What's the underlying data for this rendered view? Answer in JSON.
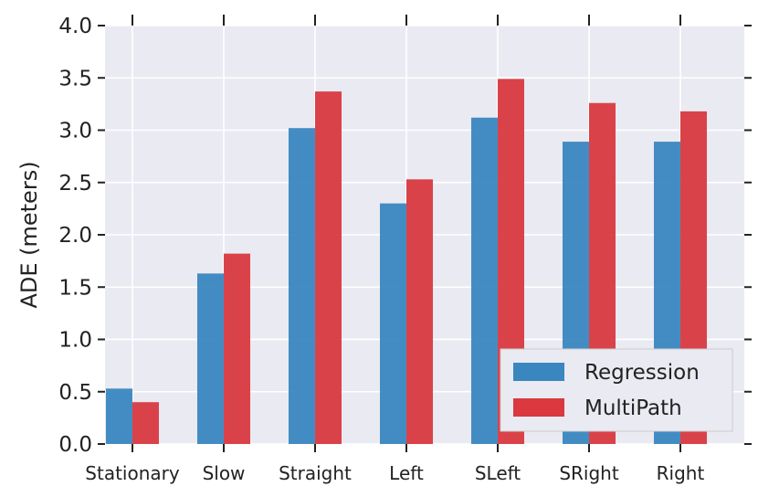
{
  "chart_data": {
    "type": "bar",
    "title": "",
    "xlabel": "",
    "ylabel": "ADE (meters)",
    "ylim": [
      0,
      4.0
    ],
    "yticks": [
      "0.0",
      "0.5",
      "1.0",
      "1.5",
      "2.0",
      "2.5",
      "3.0",
      "3.5",
      "4.0"
    ],
    "categories": [
      "Stationary",
      "Slow",
      "Straight",
      "Left",
      "SLeft",
      "SRight",
      "Right"
    ],
    "series": [
      {
        "name": "Regression",
        "color": "#3a87c0",
        "values": [
          0.53,
          1.63,
          3.02,
          2.3,
          3.12,
          2.89,
          2.89
        ]
      },
      {
        "name": "MultiPath",
        "color": "#d9393f",
        "values": [
          0.4,
          1.82,
          3.37,
          2.53,
          3.49,
          3.26,
          3.18
        ]
      }
    ],
    "grid": true,
    "legend_position": "lower-right",
    "background_color": "#eaeaf2"
  }
}
